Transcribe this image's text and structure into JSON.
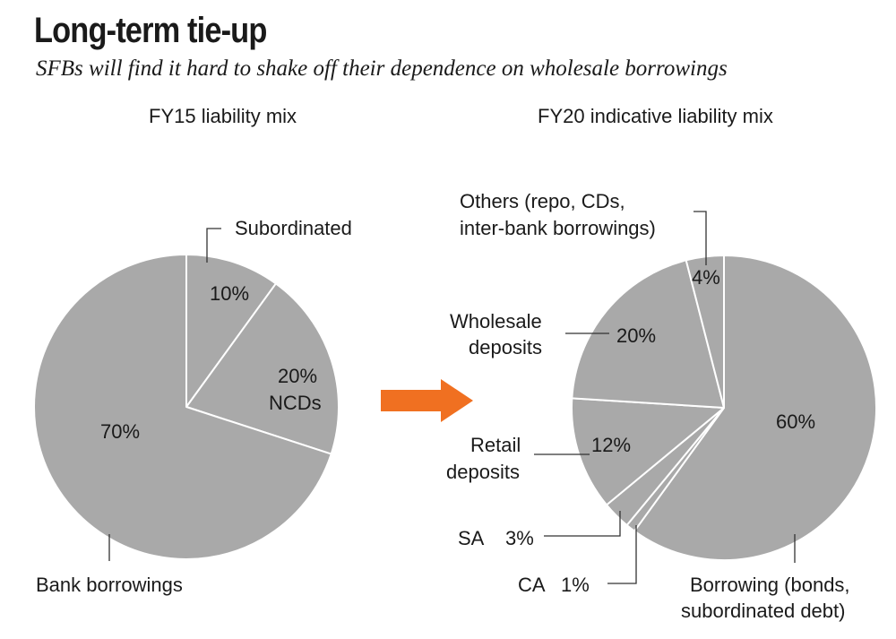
{
  "title": "Long-term tie-up",
  "subtitle": "SFBs will find it hard to shake off their dependence on wholesale borrowings",
  "colors": {
    "slice": "#a9a9a9",
    "slice_border": "#ffffff",
    "leader": "#333333",
    "arrow": "#f07021",
    "text": "#1a1a1a"
  },
  "chart_data": [
    {
      "type": "pie",
      "title": "FY15 liability mix",
      "slices": [
        {
          "label": "Subordinated",
          "value": 10,
          "value_label": "10%"
        },
        {
          "label": "NCDs",
          "value": 20,
          "value_label": "20%"
        },
        {
          "label": "Bank borrowings",
          "value": 70,
          "value_label": "70%"
        }
      ]
    },
    {
      "type": "pie",
      "title": "FY20 indicative liability mix",
      "slices": [
        {
          "label": "Borrowing (bonds, subordinated debt)",
          "label_line1": "Borrowing (bonds,",
          "label_line2": "subordinated debt)",
          "value": 60,
          "value_label": "60%"
        },
        {
          "label": "CA",
          "value": 1,
          "value_label": "1%"
        },
        {
          "label": "SA",
          "value": 3,
          "value_label": "3%"
        },
        {
          "label": "Retail deposits",
          "label_line1": "Retail",
          "label_line2": "deposits",
          "value": 12,
          "value_label": "12%"
        },
        {
          "label": "Wholesale deposits",
          "label_line1": "Wholesale",
          "label_line2": "deposits",
          "value": 20,
          "value_label": "20%"
        },
        {
          "label": "Others (repo, CDs, inter-bank borrowings)",
          "label_line1": "Others (repo, CDs,",
          "label_line2": "inter-bank borrowings)",
          "value": 4,
          "value_label": "4%"
        }
      ]
    }
  ]
}
